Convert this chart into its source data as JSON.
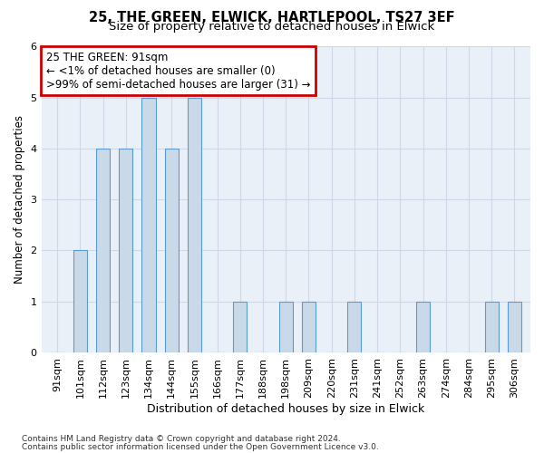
{
  "title1": "25, THE GREEN, ELWICK, HARTLEPOOL, TS27 3EF",
  "title2": "Size of property relative to detached houses in Elwick",
  "xlabel": "Distribution of detached houses by size in Elwick",
  "ylabel": "Number of detached properties",
  "categories": [
    "91sqm",
    "101sqm",
    "112sqm",
    "123sqm",
    "134sqm",
    "144sqm",
    "155sqm",
    "166sqm",
    "177sqm",
    "188sqm",
    "198sqm",
    "209sqm",
    "220sqm",
    "231sqm",
    "241sqm",
    "252sqm",
    "263sqm",
    "274sqm",
    "284sqm",
    "295sqm",
    "306sqm"
  ],
  "values": [
    0,
    2,
    4,
    4,
    5,
    4,
    5,
    0,
    1,
    0,
    1,
    1,
    0,
    1,
    0,
    0,
    1,
    0,
    0,
    1,
    1
  ],
  "highlight_index": 0,
  "bar_color": "#c9d9e8",
  "bar_edge_color": "#5b9bd5",
  "annotation_box_text": "25 THE GREEN: 91sqm\n← <1% of detached houses are smaller (0)\n>99% of semi-detached houses are larger (31) →",
  "annotation_box_color": "#ffffff",
  "annotation_box_edge_color": "#cc0000",
  "ylim": [
    0,
    6
  ],
  "yticks": [
    0,
    1,
    2,
    3,
    4,
    5,
    6
  ],
  "grid_color": "#d0d8e8",
  "background_color": "#eaf0f8",
  "footer1": "Contains HM Land Registry data © Crown copyright and database right 2024.",
  "footer2": "Contains public sector information licensed under the Open Government Licence v3.0.",
  "title1_fontsize": 10.5,
  "title2_fontsize": 9.5,
  "xlabel_fontsize": 9,
  "ylabel_fontsize": 8.5,
  "tick_fontsize": 8,
  "annotation_fontsize": 8.5,
  "footer_fontsize": 6.5
}
